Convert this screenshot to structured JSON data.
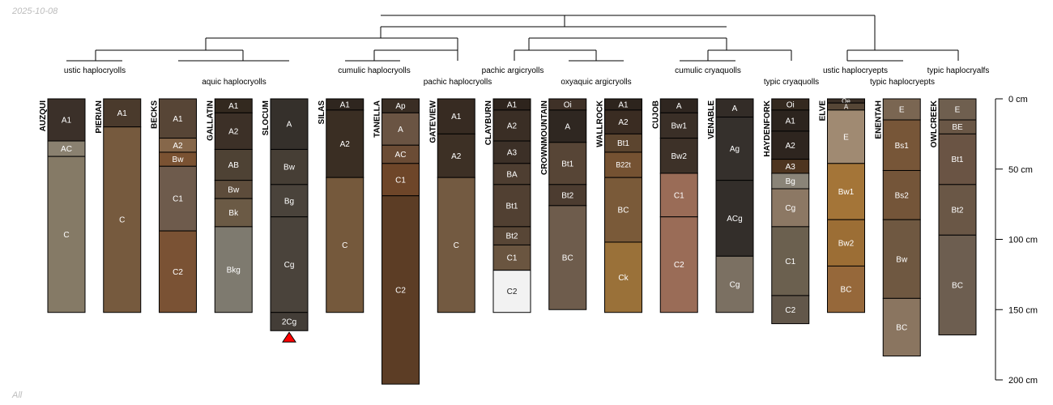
{
  "header": {
    "date": "2025-10-08",
    "subset": "All"
  },
  "chart_data": {
    "type": "soil-profile-sketch",
    "depth_axis": {
      "unit": "cm",
      "ticks": [
        0,
        50,
        100,
        150,
        200
      ],
      "tick_labels": [
        "0 cm",
        "50 cm",
        "100 cm",
        "150 cm",
        "200 cm"
      ],
      "range": [
        0,
        200
      ]
    },
    "profiles": [
      {
        "name": "AUZQUI",
        "horizons": [
          {
            "name": "A1",
            "top": 0,
            "bottom": 30,
            "color": "#3b3029"
          },
          {
            "name": "AC",
            "top": 30,
            "bottom": 41,
            "color": "#8a8170"
          },
          {
            "name": "C",
            "top": 41,
            "bottom": 152,
            "color": "#857a66"
          }
        ]
      },
      {
        "name": "PIERIAN",
        "horizons": [
          {
            "name": "A1",
            "top": 0,
            "bottom": 20,
            "color": "#4a3a2c"
          },
          {
            "name": "C",
            "top": 20,
            "bottom": 152,
            "color": "#765a3e"
          }
        ]
      },
      {
        "name": "BECKS",
        "horizons": [
          {
            "name": "A1",
            "top": 0,
            "bottom": 28,
            "color": "#574536"
          },
          {
            "name": "A2",
            "top": 28,
            "bottom": 38,
            "color": "#86674a"
          },
          {
            "name": "Bw",
            "top": 38,
            "bottom": 48,
            "color": "#7a5232"
          },
          {
            "name": "C1",
            "top": 48,
            "bottom": 94,
            "color": "#6e5b4c"
          },
          {
            "name": "C2",
            "top": 94,
            "bottom": 152,
            "color": "#7a5234"
          }
        ]
      },
      {
        "name": "GALLATIN",
        "horizons": [
          {
            "name": "A1",
            "top": 0,
            "bottom": 10,
            "color": "#33291f"
          },
          {
            "name": "A2",
            "top": 10,
            "bottom": 36,
            "color": "#3c3027"
          },
          {
            "name": "AB",
            "top": 36,
            "bottom": 58,
            "color": "#4e4234"
          },
          {
            "name": "Bw",
            "top": 58,
            "bottom": 71,
            "color": "#5d4c3b"
          },
          {
            "name": "Bk",
            "top": 71,
            "bottom": 91,
            "color": "#6b5a45"
          },
          {
            "name": "Bkg",
            "top": 91,
            "bottom": 152,
            "color": "#7e7a6f"
          }
        ]
      },
      {
        "name": "SLOCUM",
        "bottom_marker": true,
        "horizons": [
          {
            "name": "A",
            "top": 0,
            "bottom": 36,
            "color": "#35302b"
          },
          {
            "name": "Bw",
            "top": 36,
            "bottom": 61,
            "color": "#463e35"
          },
          {
            "name": "Bg",
            "top": 61,
            "bottom": 84,
            "color": "#4a433b"
          },
          {
            "name": "Cg",
            "top": 84,
            "bottom": 152,
            "color": "#4a433b"
          },
          {
            "name": "2Cg",
            "top": 152,
            "bottom": 165,
            "color": "#433d37"
          }
        ]
      },
      {
        "name": "SILAS",
        "horizons": [
          {
            "name": "A1",
            "top": 0,
            "bottom": 8,
            "color": "#2f261f"
          },
          {
            "name": "A2",
            "top": 8,
            "bottom": 56,
            "color": "#3a2e23"
          },
          {
            "name": "C",
            "top": 56,
            "bottom": 152,
            "color": "#75593c"
          }
        ]
      },
      {
        "name": "TANELLA",
        "horizons": [
          {
            "name": "Ap",
            "top": 0,
            "bottom": 10,
            "color": "#3a2e24"
          },
          {
            "name": "A",
            "top": 10,
            "bottom": 33,
            "color": "#6a5443"
          },
          {
            "name": "AC",
            "top": 33,
            "bottom": 46,
            "color": "#6b4c35"
          },
          {
            "name": "C1",
            "top": 46,
            "bottom": 69,
            "color": "#6e4629"
          },
          {
            "name": "C2",
            "top": 69,
            "bottom": 203,
            "color": "#5c3d25"
          }
        ]
      },
      {
        "name": "GATEVIEW",
        "horizons": [
          {
            "name": "A1",
            "top": 0,
            "bottom": 25,
            "color": "#372b22"
          },
          {
            "name": "A2",
            "top": 25,
            "bottom": 56,
            "color": "#3d3025"
          },
          {
            "name": "C",
            "top": 56,
            "bottom": 152,
            "color": "#735a41"
          }
        ]
      },
      {
        "name": "CLAYBURN",
        "horizons": [
          {
            "name": "A1",
            "top": 0,
            "bottom": 8,
            "color": "#2e241d"
          },
          {
            "name": "A2",
            "top": 8,
            "bottom": 30,
            "color": "#3a2e25"
          },
          {
            "name": "A3",
            "top": 30,
            "bottom": 46,
            "color": "#3c3027"
          },
          {
            "name": "BA",
            "top": 46,
            "bottom": 61,
            "color": "#4e3e31"
          },
          {
            "name": "Bt1",
            "top": 61,
            "bottom": 91,
            "color": "#514032"
          },
          {
            "name": "Bt2",
            "top": 91,
            "bottom": 104,
            "color": "#584636"
          },
          {
            "name": "C1",
            "top": 104,
            "bottom": 122,
            "color": "#6a5540"
          },
          {
            "name": "C2",
            "top": 122,
            "bottom": 152,
            "color": "#f2f2f2"
          }
        ]
      },
      {
        "name": "CROWNMOUNTAIN",
        "horizons": [
          {
            "name": "Oi",
            "top": 0,
            "bottom": 8,
            "color": "#3f3127"
          },
          {
            "name": "A",
            "top": 8,
            "bottom": 31,
            "color": "#2f2721"
          },
          {
            "name": "Bt1",
            "top": 31,
            "bottom": 61,
            "color": "#574536"
          },
          {
            "name": "Bt2",
            "top": 61,
            "bottom": 76,
            "color": "#4c3c30"
          },
          {
            "name": "BC",
            "top": 76,
            "bottom": 150,
            "color": "#6e5c4c"
          }
        ]
      },
      {
        "name": "WALLROCK",
        "horizons": [
          {
            "name": "A1",
            "top": 0,
            "bottom": 8,
            "color": "#2d241d"
          },
          {
            "name": "A2",
            "top": 8,
            "bottom": 25,
            "color": "#3a2c22"
          },
          {
            "name": "Bt1",
            "top": 25,
            "bottom": 38,
            "color": "#5c452f"
          },
          {
            "name": "B22t",
            "top": 38,
            "bottom": 56,
            "color": "#755232"
          },
          {
            "name": "BC",
            "top": 56,
            "bottom": 102,
            "color": "#7a5a39"
          },
          {
            "name": "Ck",
            "top": 102,
            "bottom": 152,
            "color": "#9a7139"
          }
        ]
      },
      {
        "name": "CUJOB",
        "horizons": [
          {
            "name": "A",
            "top": 0,
            "bottom": 10,
            "color": "#2f2620"
          },
          {
            "name": "Bw1",
            "top": 10,
            "bottom": 28,
            "color": "#3a2f27"
          },
          {
            "name": "Bw2",
            "top": 28,
            "bottom": 53,
            "color": "#3d3128"
          },
          {
            "name": "C1",
            "top": 53,
            "bottom": 84,
            "color": "#9a6c57"
          },
          {
            "name": "C2",
            "top": 84,
            "bottom": 152,
            "color": "#9a6c57"
          }
        ]
      },
      {
        "name": "VENABLE",
        "horizons": [
          {
            "name": "A",
            "top": 0,
            "bottom": 13,
            "color": "#332c27"
          },
          {
            "name": "Ag",
            "top": 13,
            "bottom": 58,
            "color": "#35302c"
          },
          {
            "name": "ACg",
            "top": 58,
            "bottom": 112,
            "color": "#332e2a"
          },
          {
            "name": "Cg",
            "top": 112,
            "bottom": 152,
            "color": "#7b7062"
          }
        ]
      },
      {
        "name": "HAYDENFORK",
        "horizons": [
          {
            "name": "Oi",
            "top": 0,
            "bottom": 8,
            "color": "#34291f"
          },
          {
            "name": "A1",
            "top": 8,
            "bottom": 23,
            "color": "#2c241e"
          },
          {
            "name": "A2",
            "top": 23,
            "bottom": 43,
            "color": "#2e251f"
          },
          {
            "name": "A3",
            "top": 43,
            "bottom": 53,
            "color": "#4e3520"
          },
          {
            "name": "Bg",
            "top": 53,
            "bottom": 64,
            "color": "#8a8478"
          },
          {
            "name": "Cg",
            "top": 64,
            "bottom": 91,
            "color": "#8c7864"
          },
          {
            "name": "C1",
            "top": 91,
            "bottom": 140,
            "color": "#6b604f"
          },
          {
            "name": "C2",
            "top": 140,
            "bottom": 160,
            "color": "#62574a"
          }
        ]
      },
      {
        "name": "ELVE",
        "horizons": [
          {
            "name": "Oe",
            "top": 0,
            "bottom": 3,
            "color": "#3a2f26"
          },
          {
            "name": "A",
            "top": 3,
            "bottom": 8,
            "color": "#564636"
          },
          {
            "name": "E",
            "top": 8,
            "bottom": 46,
            "color": "#a08a72"
          },
          {
            "name": "Bw1",
            "top": 46,
            "bottom": 86,
            "color": "#a47538"
          },
          {
            "name": "Bw2",
            "top": 86,
            "bottom": 119,
            "color": "#9c6e35"
          },
          {
            "name": "BC",
            "top": 119,
            "bottom": 152,
            "color": "#96683a"
          }
        ]
      },
      {
        "name": "ENENTAH",
        "horizons": [
          {
            "name": "E",
            "top": 0,
            "bottom": 15,
            "color": "#7a6652"
          },
          {
            "name": "Bs1",
            "top": 15,
            "bottom": 51,
            "color": "#775638"
          },
          {
            "name": "Bs2",
            "top": 51,
            "bottom": 86,
            "color": "#745539"
          },
          {
            "name": "Bw",
            "top": 86,
            "bottom": 142,
            "color": "#6f5841"
          },
          {
            "name": "BC",
            "top": 142,
            "bottom": 183,
            "color": "#8a7560"
          }
        ]
      },
      {
        "name": "OWLCREEK",
        "horizons": [
          {
            "name": "E",
            "top": 0,
            "bottom": 15,
            "color": "#6f5f4f"
          },
          {
            "name": "BE",
            "top": 15,
            "bottom": 25,
            "color": "#6a5746"
          },
          {
            "name": "Bt1",
            "top": 25,
            "bottom": 61,
            "color": "#6a5444"
          },
          {
            "name": "Bt2",
            "top": 61,
            "bottom": 97,
            "color": "#6a5746"
          },
          {
            "name": "BC",
            "top": 97,
            "bottom": 168,
            "color": "#6d5e50"
          }
        ]
      }
    ],
    "taxa_labels": [
      "ustic haplocryolls",
      "aquic haplocryolls",
      "cumulic haplocryolls",
      "pachic haplocryolls",
      "pachic argicryolls",
      "oxyaquic argicryolls",
      "cumulic cryaquolls",
      "typic cryaquolls",
      "ustic haplocryepts",
      "typic haplocryepts",
      "typic haplocryalfs"
    ]
  }
}
